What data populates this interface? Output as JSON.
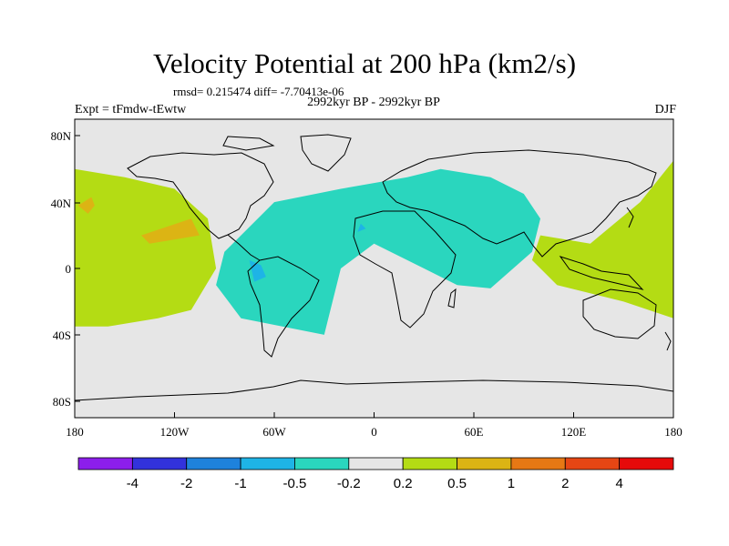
{
  "chart_data": {
    "type": "heatmap",
    "title": "Velocity Potential at 200 hPa (km2/s)",
    "stats_text": "rmsd= 0.215474 diff= -7.70413e-06",
    "period_text": "2992kyr BP - 2992kyr BP",
    "experiment_text": "Expt = tFmdw-tEwtw",
    "season_text": "DJF",
    "x_ticks": [
      "180",
      "120W",
      "60W",
      "0",
      "60E",
      "120E",
      "180"
    ],
    "y_ticks": [
      "80N",
      "40N",
      "0",
      "40S",
      "80S"
    ],
    "xlim": [
      -180,
      180
    ],
    "ylim": [
      -90,
      90
    ],
    "colorbar": {
      "labels": [
        "-4",
        "-2",
        "-1",
        "-0.5",
        "-0.2",
        "0.2",
        "0.5",
        "1",
        "2",
        "4"
      ],
      "colors": [
        "#8c1eeb",
        "#3232dc",
        "#1e82dc",
        "#1eb4e6",
        "#2ad6be",
        "#e6e6e6",
        "#b4dc14",
        "#dcb414",
        "#e67814",
        "#e64614",
        "#e60a0a"
      ]
    },
    "regions": [
      {
        "name": "",
        "level": "0.2 to 0.5",
        "color": "#b4dc14",
        "lon": [
          -180,
          -150,
          -120,
          -100,
          -95,
          -110,
          -130,
          -160,
          -180
        ],
        "lat": [
          60,
          55,
          48,
          30,
          0,
          -25,
          -30,
          -35,
          -35
        ]
      },
      {
        "name": "",
        "level": "0.5 to 1",
        "color": "#dcb414",
        "lon": [
          -170,
          -168,
          -172,
          -178
        ],
        "lat": [
          43,
          38,
          33,
          38
        ]
      },
      {
        "name": "",
        "level": "0.5 to 1",
        "color": "#dcb414",
        "lon": [
          -140,
          -110,
          -105,
          -135
        ],
        "lat": [
          20,
          30,
          20,
          15
        ]
      },
      {
        "name": "",
        "level": "-0.5 to -0.2",
        "color": "#2ad6be",
        "lon": [
          -90,
          -60,
          -20,
          20,
          40,
          70,
          90,
          100,
          95,
          70,
          50,
          30,
          0,
          -20,
          -30,
          -40,
          -80,
          -95
        ],
        "lat": [
          10,
          40,
          48,
          55,
          60,
          55,
          45,
          30,
          10,
          -12,
          -10,
          0,
          15,
          0,
          -40,
          -38,
          -30,
          -10
        ]
      },
      {
        "name": "",
        "level": "-1 to -0.5",
        "color": "#1eb4e6",
        "lon": [
          -75,
          -68,
          -65,
          -72
        ],
        "lat": [
          5,
          2,
          -5,
          -8
        ]
      },
      {
        "name": "",
        "level": "-1 to -0.5",
        "color": "#1eb4e6",
        "lon": [
          -8,
          -5,
          -10
        ],
        "lat": [
          27,
          24,
          22
        ]
      },
      {
        "name": "",
        "level": "0.2 to 0.5",
        "color": "#b4dc14",
        "lon": [
          100,
          130,
          160,
          180,
          180,
          150,
          110,
          95
        ],
        "lat": [
          20,
          15,
          40,
          65,
          -30,
          -20,
          -10,
          5
        ]
      }
    ]
  }
}
